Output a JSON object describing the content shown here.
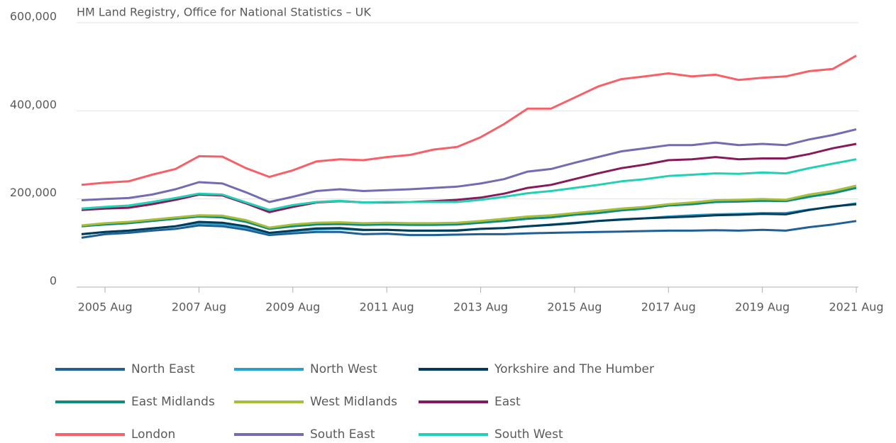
{
  "chart_data": {
    "type": "line",
    "subtitle": "HM Land Registry, Office for National Statistics – UK",
    "categories": [
      null,
      "2005 Aug",
      null,
      null,
      null,
      "2007 Aug",
      null,
      null,
      null,
      "2009 Aug",
      null,
      null,
      null,
      "2011 Aug",
      null,
      null,
      null,
      "2013 Aug",
      null,
      null,
      null,
      "2015 Aug",
      null,
      null,
      null,
      "2017 Aug",
      null,
      null,
      null,
      "2019 Aug",
      null,
      null,
      null,
      "2021 Aug"
    ],
    "ylim": [
      0,
      600000
    ],
    "yticks": [
      0,
      {
        "value": 200000,
        "label": "200,000"
      },
      {
        "value": 400000,
        "label": "400,000"
      },
      {
        "value": 600000,
        "label": "600,000"
      }
    ],
    "grid": true,
    "legend": "bottom",
    "series": [
      {
        "name": "North East",
        "color": "#206095",
        "values": [
          112000,
          120000,
          123000,
          128000,
          132000,
          140000,
          138000,
          130000,
          118000,
          122000,
          125000,
          125000,
          120000,
          121000,
          118000,
          118000,
          119000,
          120000,
          120000,
          122000,
          123000,
          124000,
          125000,
          126000,
          127000,
          128000,
          128000,
          129000,
          128000,
          130000,
          128000,
          136000,
          142000,
          150000
        ]
      },
      {
        "name": "North West",
        "color": "#27a0cc",
        "values": [
          120000,
          125000,
          128000,
          133000,
          138000,
          145000,
          143000,
          135000,
          122000,
          127000,
          131000,
          132000,
          129000,
          130000,
          128000,
          128000,
          129000,
          132000,
          134000,
          138000,
          142000,
          146000,
          150000,
          154000,
          156000,
          160000,
          163000,
          165000,
          166000,
          168000,
          168000,
          176000,
          182000,
          190000
        ]
      },
      {
        "name": "Yorkshire and The Humber",
        "color": "#003c57",
        "values": [
          120000,
          125000,
          128000,
          133000,
          138000,
          148000,
          146000,
          138000,
          123000,
          128000,
          133000,
          134000,
          130000,
          130000,
          128000,
          128000,
          128000,
          132000,
          134000,
          138000,
          141000,
          145000,
          150000,
          153000,
          156000,
          158000,
          160000,
          163000,
          164000,
          166000,
          165000,
          175000,
          183000,
          188000
        ]
      },
      {
        "name": "East Midlands",
        "color": "#118c7b",
        "values": [
          138000,
          142000,
          145000,
          150000,
          155000,
          160000,
          158000,
          148000,
          132000,
          138000,
          142000,
          143000,
          141000,
          142000,
          141000,
          141000,
          142000,
          146000,
          150000,
          155000,
          158000,
          164000,
          168000,
          174000,
          178000,
          185000,
          188000,
          193000,
          194000,
          196000,
          195000,
          205000,
          213000,
          225000
        ]
      },
      {
        "name": "West Midlands",
        "color": "#a8bd3a",
        "values": [
          140000,
          145000,
          148000,
          153000,
          158000,
          163000,
          162000,
          152000,
          135000,
          142000,
          146000,
          147000,
          145000,
          146000,
          145000,
          145000,
          146000,
          150000,
          155000,
          160000,
          163000,
          168000,
          173000,
          178000,
          182000,
          188000,
          192000,
          197000,
          198000,
          200000,
          198000,
          210000,
          218000,
          230000
        ]
      },
      {
        "name": "East",
        "color": "#871a5b",
        "values": [
          175000,
          178000,
          180000,
          188000,
          198000,
          210000,
          208000,
          190000,
          170000,
          182000,
          192000,
          195000,
          192000,
          192000,
          193000,
          195000,
          198000,
          203000,
          212000,
          225000,
          232000,
          245000,
          258000,
          270000,
          278000,
          288000,
          290000,
          295000,
          290000,
          292000,
          292000,
          302000,
          315000,
          325000
        ]
      },
      {
        "name": "London",
        "color": "#f66068",
        "values": [
          232000,
          237000,
          240000,
          255000,
          268000,
          297000,
          296000,
          270000,
          250000,
          265000,
          285000,
          290000,
          288000,
          295000,
          300000,
          312000,
          318000,
          340000,
          370000,
          405000,
          405000,
          430000,
          455000,
          472000,
          478000,
          485000,
          478000,
          482000,
          470000,
          475000,
          478000,
          490000,
          495000,
          525000
        ]
      },
      {
        "name": "South East",
        "color": "#746cb1",
        "values": [
          197000,
          200000,
          202000,
          210000,
          222000,
          238000,
          235000,
          215000,
          193000,
          205000,
          218000,
          222000,
          218000,
          220000,
          222000,
          225000,
          228000,
          235000,
          245000,
          262000,
          268000,
          282000,
          295000,
          308000,
          315000,
          322000,
          322000,
          328000,
          322000,
          325000,
          322000,
          335000,
          345000,
          358000
        ]
      },
      {
        "name": "South West",
        "color": "#22d0b6",
        "values": [
          178000,
          182000,
          185000,
          193000,
          202000,
          212000,
          210000,
          192000,
          175000,
          186000,
          193000,
          196000,
          192000,
          193000,
          193000,
          193000,
          193000,
          198000,
          205000,
          213000,
          218000,
          225000,
          232000,
          240000,
          245000,
          252000,
          255000,
          258000,
          257000,
          260000,
          258000,
          270000,
          280000,
          290000
        ]
      }
    ]
  }
}
